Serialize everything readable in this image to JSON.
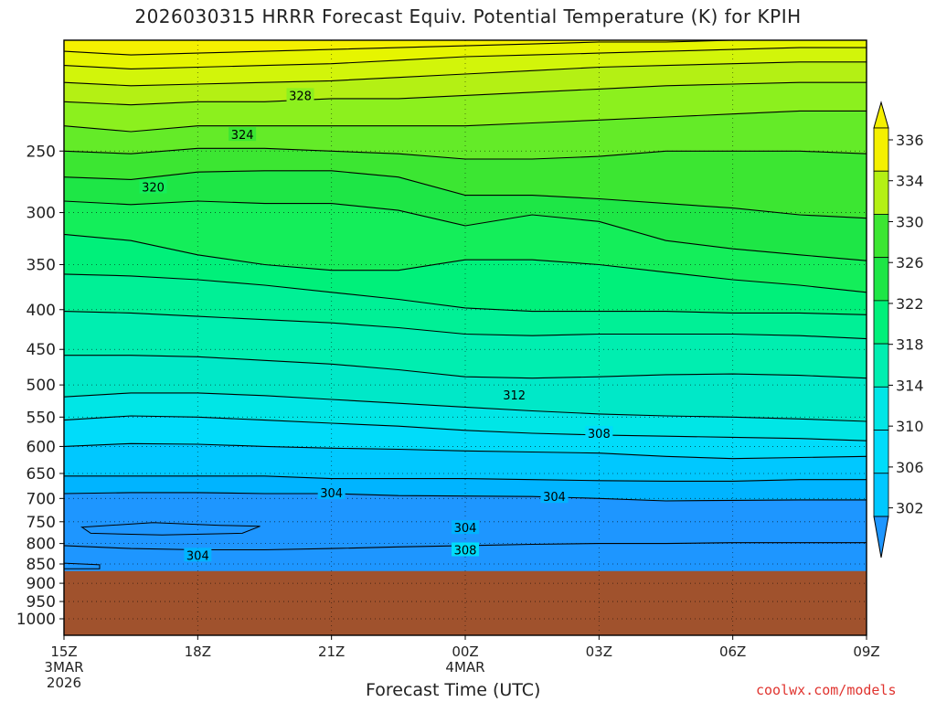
{
  "title": "2026030315 HRRR Forecast Equiv. Potential Temperature (K) for KPIH",
  "credit": "coolwx.com/models",
  "chart_data": {
    "type": "contour",
    "title": "2026030315 HRRR Forecast Equiv. Potential Temperature (K) for KPIH",
    "xlabel": "Forecast Time (UTC)",
    "ylabel": "",
    "yscale": "log",
    "ylim": [
      1050,
      180
    ],
    "y_ticks": [
      250,
      300,
      350,
      400,
      450,
      500,
      550,
      600,
      650,
      700,
      750,
      800,
      850,
      900,
      950,
      1000
    ],
    "x_ticks": [
      {
        "h": 0,
        "label": "15Z",
        "sub": [
          "3MAR",
          "2026"
        ]
      },
      {
        "h": 3,
        "label": "18Z",
        "sub": []
      },
      {
        "h": 6,
        "label": "21Z",
        "sub": []
      },
      {
        "h": 9,
        "label": "00Z",
        "sub": [
          "4MAR"
        ]
      },
      {
        "h": 12,
        "label": "03Z",
        "sub": []
      },
      {
        "h": 15,
        "label": "06Z",
        "sub": []
      },
      {
        "h": 18,
        "label": "09Z",
        "sub": []
      }
    ],
    "grid": true,
    "surface_pressure": 868,
    "colorbar": {
      "labels": [
        "302",
        "306",
        "310",
        "314",
        "318",
        "322",
        "326",
        "330",
        "334",
        "336"
      ],
      "bands": [
        {
          "v": 302,
          "color": "#1e96ff"
        },
        {
          "v": 304,
          "color": "#00b4ff"
        },
        {
          "v": 306,
          "color": "#00c8ff"
        },
        {
          "v": 308,
          "color": "#00dcfa"
        },
        {
          "v": 310,
          "color": "#00e6e6"
        },
        {
          "v": 312,
          "color": "#00e8c8"
        },
        {
          "v": 314,
          "color": "#00eeb0"
        },
        {
          "v": 316,
          "color": "#00f096"
        },
        {
          "v": 318,
          "color": "#00f07a"
        },
        {
          "v": 320,
          "color": "#14ee5a"
        },
        {
          "v": 322,
          "color": "#1ee646"
        },
        {
          "v": 324,
          "color": "#3ce632"
        },
        {
          "v": 326,
          "color": "#64eb28"
        },
        {
          "v": 328,
          "color": "#8cf01e"
        },
        {
          "v": 330,
          "color": "#b4f014"
        },
        {
          "v": 332,
          "color": "#d2f50a"
        },
        {
          "v": 334,
          "color": "#e6f500"
        },
        {
          "v": 336,
          "color": "#f5f000"
        }
      ]
    },
    "contour_labels": [
      {
        "v": "328",
        "h": 5.3,
        "p": 212
      },
      {
        "v": "324",
        "h": 4.0,
        "p": 238
      },
      {
        "v": "320",
        "h": 2.0,
        "p": 278
      },
      {
        "v": "312",
        "h": 10.1,
        "p": 515
      },
      {
        "v": "308",
        "h": 12.0,
        "p": 577
      },
      {
        "v": "304",
        "h": 6.0,
        "p": 688
      },
      {
        "v": "304",
        "h": 11.0,
        "p": 696
      },
      {
        "v": "304",
        "h": 9.0,
        "p": 763
      },
      {
        "v": "304",
        "h": 3.0,
        "p": 828
      },
      {
        "v": "308",
        "h": 9.0,
        "p": 815
      }
    ],
    "colors": {
      "ground": "#a0522d",
      "line": "#000000"
    }
  }
}
